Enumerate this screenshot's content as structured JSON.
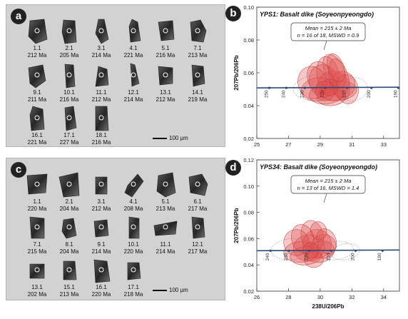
{
  "panels": {
    "a": {
      "letter": "a",
      "scale": "100 µm",
      "grains": [
        {
          "id": "1.1",
          "age": "212 Ma"
        },
        {
          "id": "2.1",
          "age": "205 Ma"
        },
        {
          "id": "3.1",
          "age": "214 Ma"
        },
        {
          "id": "4.1",
          "age": "221 Ma"
        },
        {
          "id": "5.1",
          "age": "216 Ma"
        },
        {
          "id": "7.1",
          "age": "213 Ma"
        },
        {
          "id": "9.1",
          "age": "211 Ma"
        },
        {
          "id": "10.1",
          "age": "216 Ma"
        },
        {
          "id": "11.1",
          "age": "212 Ma"
        },
        {
          "id": "12.1",
          "age": "214 Ma"
        },
        {
          "id": "13.1",
          "age": "212 Ma"
        },
        {
          "id": "14.1",
          "age": "219 Ma"
        },
        {
          "id": "16.1",
          "age": "221 Ma"
        },
        {
          "id": "17.1",
          "age": "227 Ma"
        },
        {
          "id": "18.1",
          "age": "216 Ma"
        }
      ]
    },
    "c": {
      "letter": "c",
      "scale": "100 µm",
      "grains": [
        {
          "id": "1.1",
          "age": "220 Ma"
        },
        {
          "id": "2.1",
          "age": "204 Ma"
        },
        {
          "id": "3.1",
          "age": "212 Ma"
        },
        {
          "id": "4.1",
          "age": "208 Ma"
        },
        {
          "id": "5.1",
          "age": "213 Ma"
        },
        {
          "id": "6.1",
          "age": "217 Ma"
        },
        {
          "id": "7.1",
          "age": "215 Ma"
        },
        {
          "id": "8.1",
          "age": "204 Ma"
        },
        {
          "id": "9.1",
          "age": "214 Ma"
        },
        {
          "id": "10.1",
          "age": "220 Ma"
        },
        {
          "id": "11.1",
          "age": "214 Ma"
        },
        {
          "id": "12.1",
          "age": "217 Ma"
        },
        {
          "id": "13.1",
          "age": "202 Ma"
        },
        {
          "id": "15.1",
          "age": "213 Ma"
        },
        {
          "id": "16.1",
          "age": "220 Ma"
        },
        {
          "id": "17.1",
          "age": "218 Ma"
        }
      ]
    }
  },
  "chart_data": [
    {
      "type": "scatter",
      "panel": "b",
      "title": "YPS1: Basalt dike (Soyeonpyeongdo)",
      "annotation": [
        "Mean = 215 ± 2 Ma",
        "n = 16 of 18, MSWD = 0.9"
      ],
      "ylabel": "207Pb/206Pb",
      "xlabel": "",
      "xlim": [
        25,
        34
      ],
      "ylim": [
        0.02,
        0.1
      ],
      "xticks": [
        "25",
        "27",
        "29",
        "31",
        "33"
      ],
      "yticks": [
        "0.02",
        "0.04",
        "0.06",
        "0.08",
        "0.10"
      ],
      "concordia_ages": [
        "250",
        "240",
        "230",
        "220",
        "210",
        "200",
        "190"
      ],
      "concordia_age_values": [
        250,
        240,
        230,
        220,
        210,
        200,
        190
      ],
      "concordia_y": 0.0508,
      "fill_color": "#e05050",
      "ellipses_included": [
        {
          "x": 29.8,
          "y": 0.052,
          "sx": 1.0,
          "sy": 0.009,
          "rot": -8
        },
        {
          "x": 29.2,
          "y": 0.055,
          "sx": 0.9,
          "sy": 0.01,
          "rot": -15
        },
        {
          "x": 30.1,
          "y": 0.049,
          "sx": 1.2,
          "sy": 0.006,
          "rot": -5
        },
        {
          "x": 29.5,
          "y": 0.058,
          "sx": 0.7,
          "sy": 0.012,
          "rot": -10
        },
        {
          "x": 30.4,
          "y": 0.053,
          "sx": 0.8,
          "sy": 0.008,
          "rot": -20
        },
        {
          "x": 28.8,
          "y": 0.05,
          "sx": 1.0,
          "sy": 0.007,
          "rot": -12
        },
        {
          "x": 29.9,
          "y": 0.061,
          "sx": 0.6,
          "sy": 0.011,
          "rot": -25
        },
        {
          "x": 29.4,
          "y": 0.047,
          "sx": 1.1,
          "sy": 0.006,
          "rot": -6
        },
        {
          "x": 30.7,
          "y": 0.05,
          "sx": 0.7,
          "sy": 0.009,
          "rot": -10
        },
        {
          "x": 29.0,
          "y": 0.057,
          "sx": 0.8,
          "sy": 0.01,
          "rot": -18
        },
        {
          "x": 29.7,
          "y": 0.045,
          "sx": 0.9,
          "sy": 0.005,
          "rot": -4
        },
        {
          "x": 30.2,
          "y": 0.056,
          "sx": 0.6,
          "sy": 0.013,
          "rot": -14
        },
        {
          "x": 28.5,
          "y": 0.054,
          "sx": 0.9,
          "sy": 0.01,
          "rot": -16
        },
        {
          "x": 29.6,
          "y": 0.051,
          "sx": 0.5,
          "sy": 0.005,
          "rot": -8
        },
        {
          "x": 30.0,
          "y": 0.063,
          "sx": 0.5,
          "sy": 0.009,
          "rot": -20
        },
        {
          "x": 29.3,
          "y": 0.049,
          "sx": 0.6,
          "sy": 0.006,
          "rot": -10
        }
      ],
      "ellipses_excluded": [
        {
          "x": 28.9,
          "y": 0.051,
          "sx": 1.6,
          "sy": 0.008,
          "rot": -5
        },
        {
          "x": 31.1,
          "y": 0.05,
          "sx": 0.9,
          "sy": 0.007,
          "rot": -12
        }
      ]
    },
    {
      "type": "scatter",
      "panel": "d",
      "title": "YPS34: Basalt dike (Soyeonpyeongdo)",
      "annotation": [
        "Mean = 215 ± 2 Ma",
        "n = 13 of 16, MSWD = 1.4"
      ],
      "ylabel": "207Pb/206Pb",
      "xlabel": "238U/206Pb",
      "xlim": [
        26,
        35
      ],
      "ylim": [
        0.02,
        0.12
      ],
      "xticks": [
        "26",
        "28",
        "30",
        "32",
        "34"
      ],
      "yticks": [
        "0.02",
        "0.04",
        "0.06",
        "0.08",
        "0.10",
        "0.12"
      ],
      "concordia_ages": [
        "240",
        "230",
        "220",
        "210",
        "200",
        "190"
      ],
      "concordia_age_values": [
        240,
        230,
        220,
        210,
        200,
        190
      ],
      "concordia_y": 0.0508,
      "fill_color": "#e05050",
      "ellipses_included": [
        {
          "x": 29.3,
          "y": 0.053,
          "sx": 1.0,
          "sy": 0.01,
          "rot": -8
        },
        {
          "x": 29.8,
          "y": 0.056,
          "sx": 0.9,
          "sy": 0.011,
          "rot": -15
        },
        {
          "x": 28.8,
          "y": 0.05,
          "sx": 1.1,
          "sy": 0.008,
          "rot": -5
        },
        {
          "x": 29.5,
          "y": 0.062,
          "sx": 0.7,
          "sy": 0.012,
          "rot": -12
        },
        {
          "x": 30.2,
          "y": 0.054,
          "sx": 0.8,
          "sy": 0.009,
          "rot": -20
        },
        {
          "x": 28.5,
          "y": 0.057,
          "sx": 0.8,
          "sy": 0.01,
          "rot": -10
        },
        {
          "x": 29.1,
          "y": 0.047,
          "sx": 1.0,
          "sy": 0.007,
          "rot": -6
        },
        {
          "x": 30.0,
          "y": 0.05,
          "sx": 0.9,
          "sy": 0.008,
          "rot": -14
        },
        {
          "x": 29.6,
          "y": 0.044,
          "sx": 0.6,
          "sy": 0.006,
          "rot": -4
        },
        {
          "x": 28.9,
          "y": 0.06,
          "sx": 0.7,
          "sy": 0.011,
          "rot": -18
        },
        {
          "x": 30.4,
          "y": 0.058,
          "sx": 0.6,
          "sy": 0.01,
          "rot": -22
        },
        {
          "x": 29.4,
          "y": 0.051,
          "sx": 0.5,
          "sy": 0.006,
          "rot": -8
        },
        {
          "x": 29.9,
          "y": 0.066,
          "sx": 0.5,
          "sy": 0.007,
          "rot": -15
        }
      ],
      "ellipses_excluded": [
        {
          "x": 31.0,
          "y": 0.051,
          "sx": 1.1,
          "sy": 0.007,
          "rot": -6
        },
        {
          "x": 31.6,
          "y": 0.05,
          "sx": 0.9,
          "sy": 0.006,
          "rot": -10
        },
        {
          "x": 28.2,
          "y": 0.052,
          "sx": 1.3,
          "sy": 0.008,
          "rot": -5
        }
      ]
    }
  ]
}
